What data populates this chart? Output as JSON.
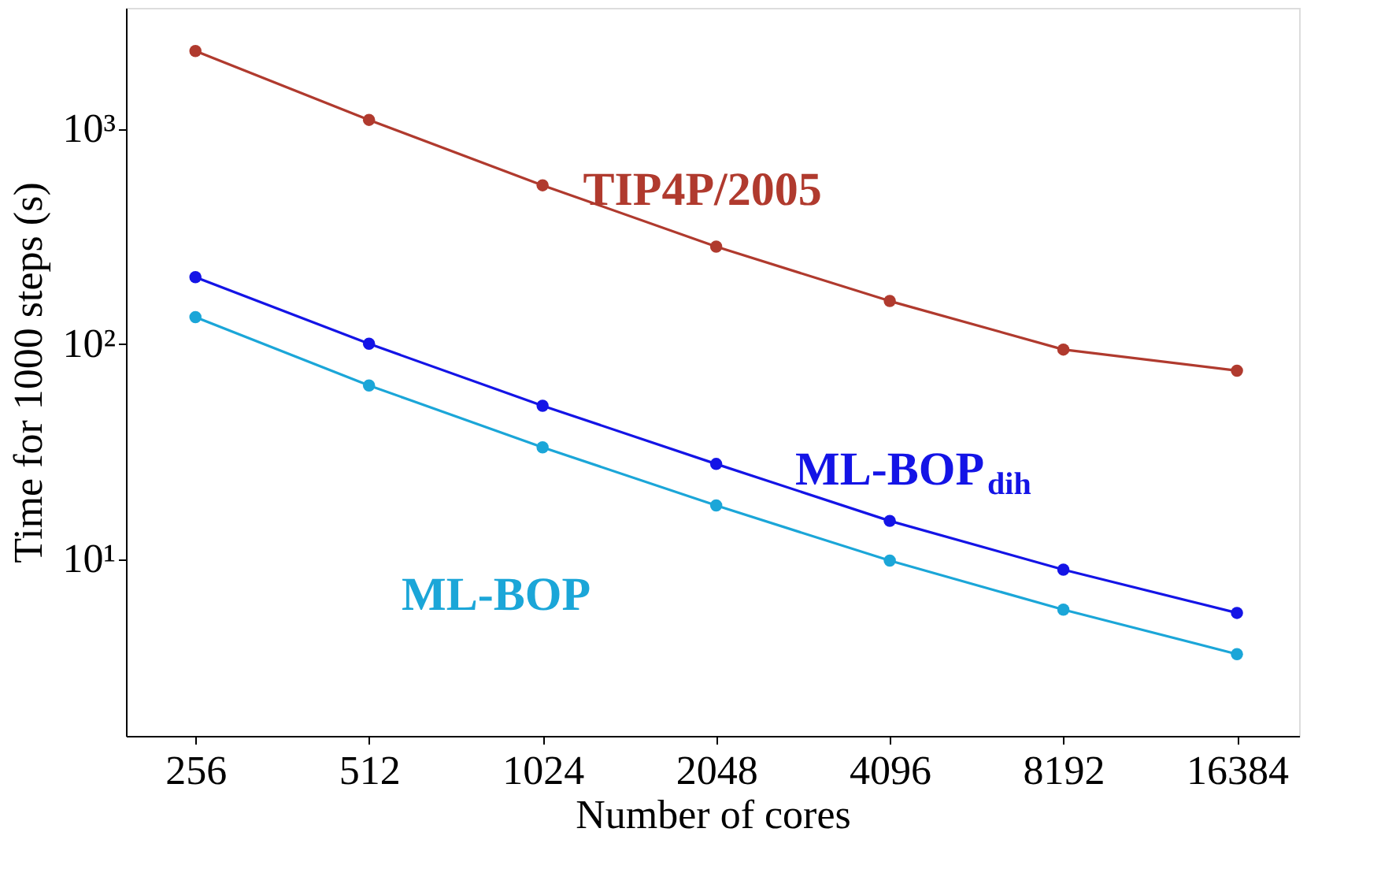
{
  "chart_data": {
    "type": "line",
    "xlabel": "Number of cores",
    "ylabel": "Time for 1000 steps (s)",
    "x": [
      256,
      512,
      1024,
      2048,
      4096,
      8192,
      16384
    ],
    "series": [
      {
        "name": "TIP4P/2005",
        "color": "#b03a2e",
        "values": [
          2300,
          1100,
          546,
          283,
          158,
          94,
          75
        ]
      },
      {
        "name": "ML-BOP$_{dih}$",
        "color": "#1414e6",
        "values": [
          204,
          100,
          51.5,
          27.6,
          15,
          8.9,
          5.6
        ]
      },
      {
        "name": "ML-BOP",
        "color": "#1ba6d8",
        "values": [
          133,
          64,
          33,
          17.7,
          9.8,
          5.8,
          3.6
        ]
      }
    ],
    "log": "xy",
    "xlim": [
      194,
      21000
    ],
    "ylim": [
      1.5,
      3650
    ],
    "xticks": [
      256,
      512,
      1024,
      2048,
      4096,
      8192,
      16384
    ],
    "yticks": [
      {
        "value": 10,
        "label": "10¹"
      },
      {
        "value": 100,
        "label": "10²"
      },
      {
        "value": 1000,
        "label": "10³"
      }
    ],
    "marker": "circle",
    "line_style": "solid",
    "grid": false
  }
}
